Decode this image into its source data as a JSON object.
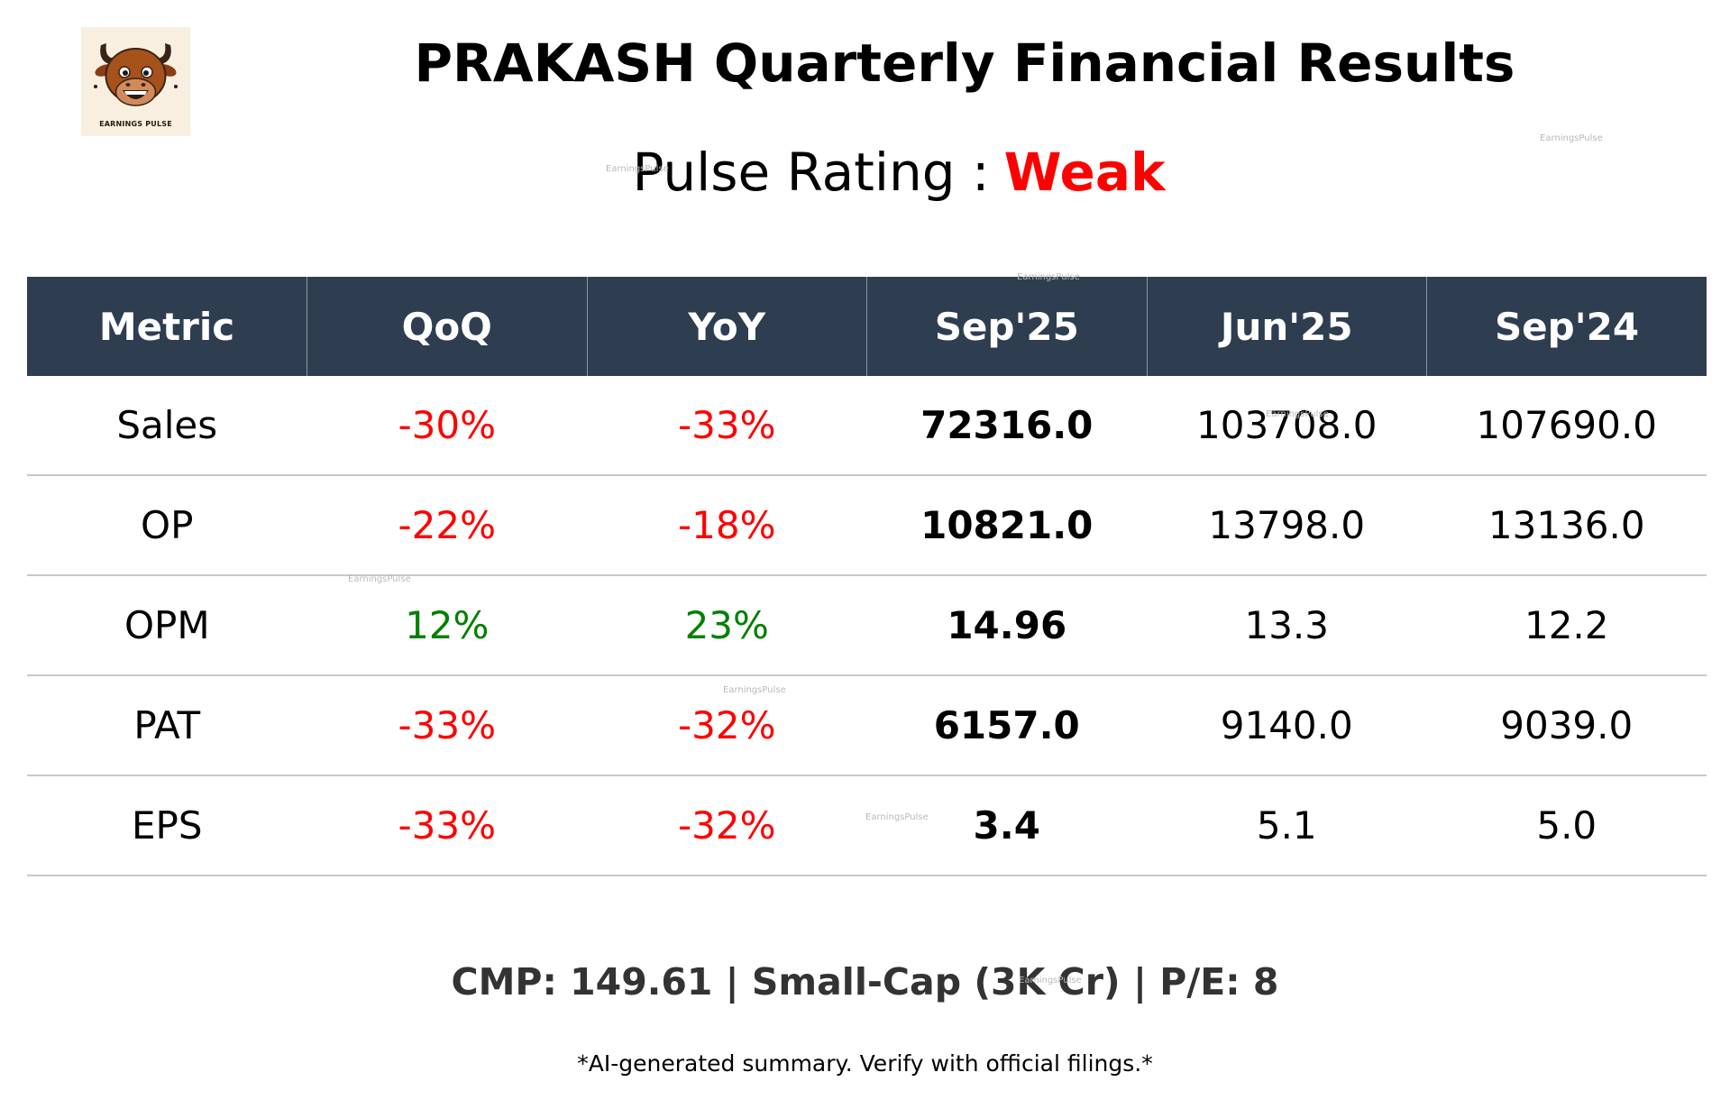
{
  "brand": {
    "logo_caption": "EARNINGS PULSE",
    "logo_icon": "bull-mascot-icon",
    "watermark": "EarningsPulse"
  },
  "title": "PRAKASH Quarterly Financial Results",
  "rating": {
    "label": "Pulse Rating :",
    "value": "Weak",
    "value_color": "#ff0000"
  },
  "colors": {
    "header_bg": "#2e3e50",
    "negative": "#ff0000",
    "positive": "#008000"
  },
  "table": {
    "headers": [
      "Metric",
      "QoQ",
      "YoY",
      "Sep'25",
      "Jun'25",
      "Sep'24"
    ],
    "rows": [
      {
        "metric": "Sales",
        "qoq": "-30%",
        "yoy": "-33%",
        "sep25": "72316.0",
        "jun25": "103708.0",
        "sep24": "107690.0"
      },
      {
        "metric": "OP",
        "qoq": "-22%",
        "yoy": "-18%",
        "sep25": "10821.0",
        "jun25": "13798.0",
        "sep24": "13136.0"
      },
      {
        "metric": "OPM",
        "qoq": "12%",
        "yoy": "23%",
        "sep25": "14.96",
        "jun25": "13.3",
        "sep24": "12.2"
      },
      {
        "metric": "PAT",
        "qoq": "-33%",
        "yoy": "-32%",
        "sep25": "6157.0",
        "jun25": "9140.0",
        "sep24": "9039.0"
      },
      {
        "metric": "EPS",
        "qoq": "-33%",
        "yoy": "-32%",
        "sep25": "3.4",
        "jun25": "5.1",
        "sep24": "5.0"
      }
    ]
  },
  "footer": "CMP: 149.61 | Small-Cap (3K Cr) | P/E: 8",
  "disclaimer": "*AI-generated summary. Verify with official filings.*"
}
